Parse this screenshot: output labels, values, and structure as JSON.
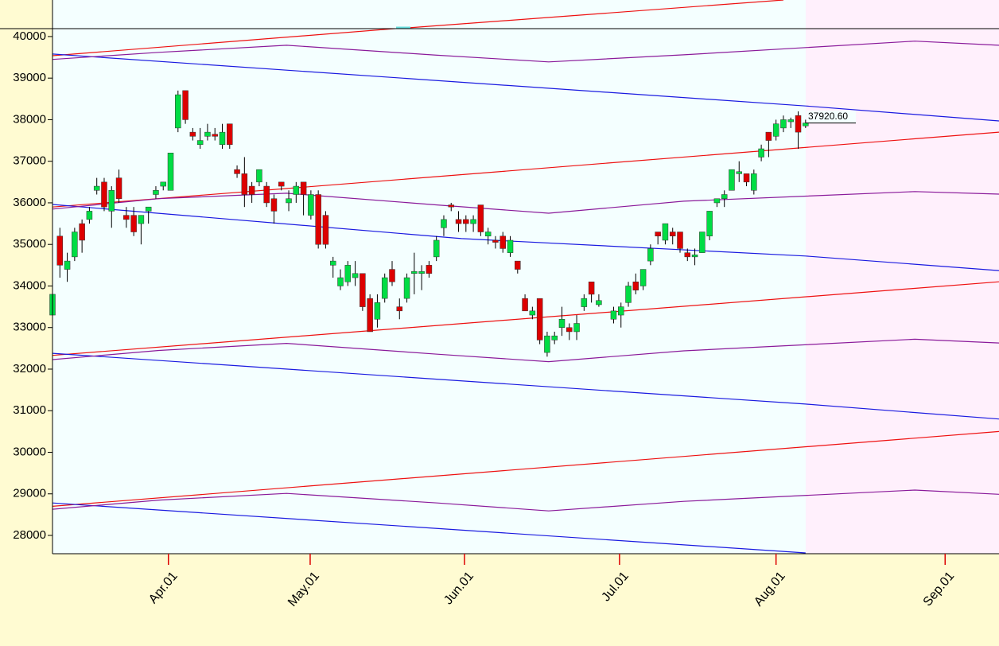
{
  "chart_data": {
    "type": "candlestick",
    "up_color": "#00dd44",
    "down_color": "#dd0000",
    "x": [
      0,
      1,
      2,
      3,
      4,
      5,
      6,
      7,
      8,
      9,
      10,
      11,
      12,
      13,
      14,
      15,
      16,
      17,
      18,
      19,
      20,
      21,
      22,
      23,
      24,
      25,
      26,
      27,
      28,
      29,
      30,
      31,
      32,
      33,
      34,
      35,
      36,
      37,
      38,
      39,
      40,
      41,
      42,
      43,
      44,
      45,
      46,
      47,
      48,
      49,
      50,
      51,
      52,
      53,
      54,
      55,
      56,
      57,
      58,
      59,
      60,
      61,
      62,
      63,
      64,
      65,
      66,
      67,
      68,
      69,
      70,
      71,
      72,
      73,
      74,
      76,
      77,
      78,
      79,
      80,
      81,
      82,
      83,
      84,
      85,
      86,
      87,
      88,
      89,
      90,
      91,
      92,
      93,
      94,
      95,
      96,
      97,
      98,
      99,
      100,
      101,
      102
    ],
    "open": [
      33300,
      35200,
      34400,
      34700,
      35500,
      35600,
      36300,
      36500,
      35800,
      36600,
      35700,
      35700,
      35500,
      35800,
      36200,
      36400,
      36300,
      37800,
      38700,
      37700,
      37400,
      37600,
      37650,
      37400,
      37900,
      36800,
      36700,
      36400,
      36500,
      36400,
      36100,
      36500,
      36000,
      36200,
      36500,
      35700,
      36200,
      35700,
      34500,
      34000,
      34100,
      34200,
      34300,
      33700,
      33200,
      33700,
      34400,
      33500,
      33700,
      34300,
      34300,
      34500,
      34700,
      35400,
      35950,
      35600,
      35600,
      35500,
      35950,
      35200,
      35100,
      35200,
      34800,
      34600,
      33700,
      33300,
      33700,
      32400,
      32700,
      33000,
      33000,
      32900,
      33500,
      34100,
      33550,
      33200,
      33300,
      33600,
      34100,
      34000,
      34600,
      35300,
      35100,
      35300,
      35300,
      34800,
      34700,
      34800,
      35200,
      36000,
      36100,
      36300,
      36700,
      36700,
      36300,
      37100,
      37700,
      37600,
      37800,
      37950,
      38100,
      37850
    ],
    "high": [
      33900,
      35400,
      34800,
      35400,
      35600,
      35900,
      36600,
      36600,
      36400,
      36800,
      35900,
      35900,
      35700,
      35900,
      36400,
      36500,
      37200,
      38700,
      38700,
      37800,
      37800,
      37900,
      37800,
      37900,
      37900,
      36900,
      37100,
      36500,
      36800,
      36500,
      36200,
      36500,
      36300,
      36500,
      36500,
      36300,
      36300,
      35800,
      34700,
      34400,
      34600,
      34600,
      34300,
      33800,
      33800,
      34300,
      34600,
      33700,
      34300,
      34800,
      34500,
      34600,
      35200,
      35700,
      36000,
      35800,
      35700,
      35700,
      35950,
      35400,
      35200,
      35300,
      35200,
      34600,
      33800,
      33500,
      33700,
      32900,
      32900,
      33500,
      33100,
      33300,
      33800,
      34100,
      33800,
      33500,
      33600,
      34100,
      34300,
      34400,
      35000,
      35300,
      35500,
      35400,
      35300,
      34900,
      34900,
      35300,
      35800,
      36100,
      36300,
      36800,
      37000,
      36700,
      36800,
      37400,
      37700,
      38000,
      38100,
      38050,
      38200,
      38000
    ],
    "low": [
      32900,
      34200,
      34100,
      34600,
      34800,
      35500,
      36200,
      35800,
      35400,
      36000,
      35400,
      35200,
      35000,
      35500,
      36100,
      36300,
      36300,
      37700,
      37900,
      37500,
      37300,
      37500,
      37500,
      37300,
      37300,
      36600,
      35900,
      36000,
      36400,
      35900,
      35500,
      36300,
      35800,
      36000,
      35700,
      35600,
      34900,
      34900,
      34200,
      33900,
      34000,
      34000,
      33400,
      32900,
      33000,
      33600,
      34000,
      33200,
      33600,
      33800,
      33900,
      34200,
      34600,
      35200,
      35800,
      35300,
      35300,
      35300,
      35200,
      35000,
      34900,
      34800,
      34700,
      34300,
      33400,
      33200,
      32600,
      32300,
      32600,
      32800,
      32700,
      32700,
      33400,
      33600,
      33500,
      33100,
      33000,
      33500,
      33800,
      33900,
      34500,
      35000,
      35000,
      35000,
      34800,
      34600,
      34500,
      34800,
      35100,
      35900,
      35900,
      36300,
      36500,
      36400,
      36200,
      37000,
      37100,
      37500,
      37700,
      37800,
      37300,
      37800
    ],
    "close": [
      33800,
      34500,
      34600,
      35300,
      35100,
      35800,
      36400,
      35900,
      36300,
      36100,
      35600,
      35300,
      35700,
      35900,
      36300,
      36500,
      37200,
      38600,
      38000,
      37600,
      37500,
      37700,
      37600,
      37700,
      37400,
      36700,
      36200,
      36200,
      36800,
      36000,
      35800,
      36400,
      36100,
      36400,
      36200,
      36200,
      35000,
      35000,
      34600,
      34200,
      34500,
      34300,
      33500,
      32900,
      33600,
      34200,
      34100,
      33400,
      34200,
      34350,
      34350,
      34300,
      35100,
      35600,
      35900,
      35500,
      35500,
      35600,
      35300,
      35300,
      35050,
      34900,
      35100,
      34400,
      33400,
      33400,
      32700,
      32800,
      32800,
      33200,
      32900,
      33100,
      33700,
      33800,
      33650,
      33400,
      33500,
      34000,
      33900,
      34400,
      34900,
      35200,
      35500,
      35200,
      34900,
      34700,
      34750,
      35300,
      35800,
      36100,
      36200,
      36800,
      36750,
      36500,
      36700,
      37300,
      37500,
      37900,
      38000,
      38000,
      37700,
      37920.6
    ],
    "last_price": {
      "value": 37920.6,
      "label": "37920.60"
    },
    "overlays": [
      {
        "color": "#ee1111",
        "x": [
          0,
          128.2
        ],
        "values": [
          39540,
          41340
        ]
      },
      {
        "color": "#ee1111",
        "x": [
          0,
          128.2
        ],
        "values": [
          35900,
          37700
        ]
      },
      {
        "color": "#ee1111",
        "x": [
          0,
          128.2
        ],
        "values": [
          32330,
          34100
        ]
      },
      {
        "color": "#ee1111",
        "x": [
          0,
          128.2
        ],
        "values": [
          28700,
          30500
        ]
      },
      {
        "color": "#1a1ae0",
        "x": [
          0,
          102,
          128.2
        ],
        "values": [
          39580,
          38330,
          37970
        ]
      },
      {
        "color": "#1a1ae0",
        "x": [
          0,
          55.4,
          102,
          128.2
        ],
        "values": [
          35960,
          35140,
          34720,
          34370
        ]
      },
      {
        "color": "#1a1ae0",
        "x": [
          0,
          102,
          128.2
        ],
        "values": [
          32380,
          31160,
          30800
        ]
      },
      {
        "color": "#1a1ae0",
        "x": [
          0,
          102
        ],
        "values": [
          28780,
          27580
        ]
      },
      {
        "color": "#8a1a9a",
        "x": [
          0,
          14.4,
          31.7,
          52.1,
          67.2,
          85.5,
          116.8,
          128.2
        ],
        "values": [
          39450,
          39620,
          39790,
          39550,
          39390,
          39560,
          39890,
          39790
        ]
      },
      {
        "color": "#8a1a9a",
        "x": [
          0,
          14.4,
          31.7,
          52.1,
          67.2,
          85.5,
          116.8,
          128.2
        ],
        "values": [
          35850,
          36100,
          36230,
          35950,
          35750,
          36040,
          36270,
          36210
        ]
      },
      {
        "color": "#8a1a9a",
        "x": [
          0,
          14.4,
          31.7,
          52.1,
          67.2,
          85.5,
          116.8,
          128.2
        ],
        "values": [
          32230,
          32450,
          32620,
          32360,
          32180,
          32440,
          32720,
          32630
        ]
      },
      {
        "color": "#8a1a9a",
        "x": [
          0,
          14.4,
          31.7,
          52.1,
          67.2,
          85.5,
          116.8,
          128.2
        ],
        "values": [
          28630,
          28850,
          29010,
          28780,
          28590,
          28820,
          29090,
          28990
        ]
      }
    ],
    "xlim": [
      0,
      128.2
    ],
    "xticks": [
      {
        "value": 15.7,
        "label": "Apr.01"
      },
      {
        "value": 34.9,
        "label": "May.01"
      },
      {
        "value": 55.8,
        "label": "Jun.01"
      },
      {
        "value": 76.8,
        "label": "Jul.01"
      },
      {
        "value": 98.0,
        "label": "Aug.01"
      },
      {
        "value": 120.9,
        "label": "Sep.01"
      }
    ],
    "ylim": [
      27560,
      40190
    ],
    "yticks": [
      28000,
      29000,
      30000,
      31000,
      32000,
      33000,
      34000,
      35000,
      36000,
      37000,
      38000,
      39000,
      40000
    ]
  }
}
